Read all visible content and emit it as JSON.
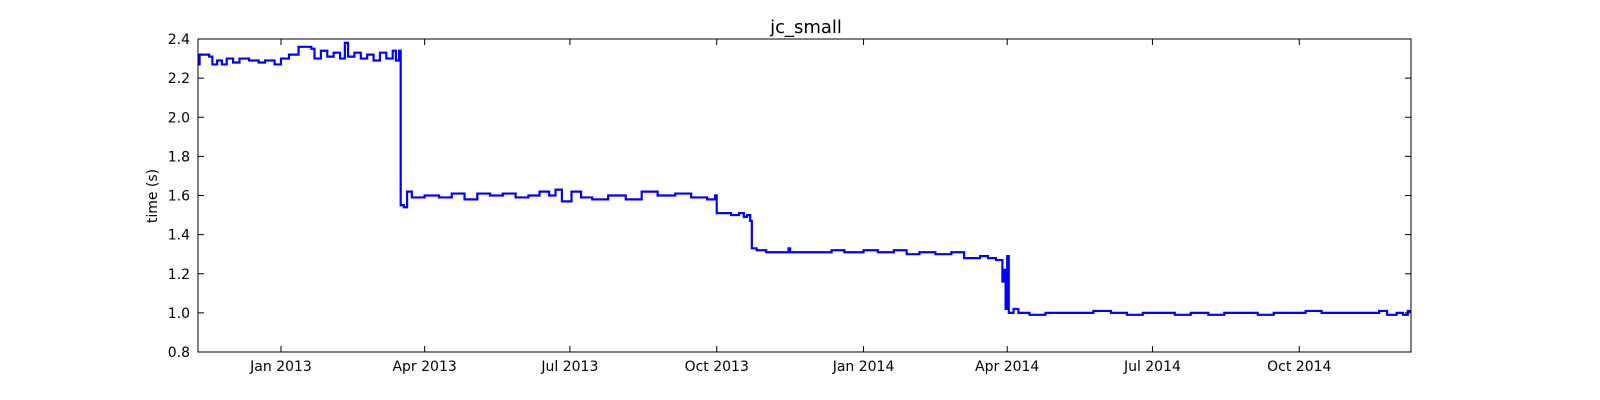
{
  "chart_data": {
    "type": "line",
    "title": "jc_small",
    "xlabel": "",
    "ylabel": "time (s)",
    "x_axis": "date",
    "xlim": [
      "2012-11-10",
      "2014-12-10"
    ],
    "ylim": [
      0.8,
      2.4
    ],
    "x_ticks": [
      {
        "date": "2013-01-01",
        "label": "Jan 2013"
      },
      {
        "date": "2013-04-01",
        "label": "Apr 2013"
      },
      {
        "date": "2013-07-01",
        "label": "Jul 2013"
      },
      {
        "date": "2013-10-01",
        "label": "Oct 2013"
      },
      {
        "date": "2014-01-01",
        "label": "Jan 2014"
      },
      {
        "date": "2014-04-01",
        "label": "Apr 2014"
      },
      {
        "date": "2014-07-01",
        "label": "Jul 2014"
      },
      {
        "date": "2014-10-01",
        "label": "Oct 2014"
      }
    ],
    "y_ticks": [
      {
        "value": 0.8,
        "label": "0.8"
      },
      {
        "value": 1.0,
        "label": "1.0"
      },
      {
        "value": 1.2,
        "label": "1.2"
      },
      {
        "value": 1.4,
        "label": "1.4"
      },
      {
        "value": 1.6,
        "label": "1.6"
      },
      {
        "value": 1.8,
        "label": "1.8"
      },
      {
        "value": 2.0,
        "label": "2.0"
      },
      {
        "value": 2.2,
        "label": "2.2"
      },
      {
        "value": 2.4,
        "label": "2.4"
      }
    ],
    "grid": false,
    "legend": "none",
    "series": [
      {
        "color": "#0000ff",
        "step": true,
        "points": [
          [
            "2012-11-10",
            2.27
          ],
          [
            "2012-11-11",
            2.32
          ],
          [
            "2012-11-17",
            2.31
          ],
          [
            "2012-11-19",
            2.27
          ],
          [
            "2012-11-22",
            2.29
          ],
          [
            "2012-11-25",
            2.27
          ],
          [
            "2012-11-28",
            2.3
          ],
          [
            "2012-12-02",
            2.28
          ],
          [
            "2012-12-06",
            2.3
          ],
          [
            "2012-12-12",
            2.29
          ],
          [
            "2012-12-18",
            2.28
          ],
          [
            "2012-12-22",
            2.29
          ],
          [
            "2012-12-28",
            2.27
          ],
          [
            "2013-01-01",
            2.3
          ],
          [
            "2013-01-06",
            2.32
          ],
          [
            "2013-01-12",
            2.36
          ],
          [
            "2013-01-20",
            2.35
          ],
          [
            "2013-01-22",
            2.3
          ],
          [
            "2013-01-26",
            2.34
          ],
          [
            "2013-01-30",
            2.31
          ],
          [
            "2013-02-03",
            2.33
          ],
          [
            "2013-02-07",
            2.3
          ],
          [
            "2013-02-10",
            2.38
          ],
          [
            "2013-02-12",
            2.31
          ],
          [
            "2013-02-16",
            2.33
          ],
          [
            "2013-02-20",
            2.3
          ],
          [
            "2013-02-24",
            2.32
          ],
          [
            "2013-02-28",
            2.29
          ],
          [
            "2013-03-04",
            2.33
          ],
          [
            "2013-03-08",
            2.3
          ],
          [
            "2013-03-12",
            2.34
          ],
          [
            "2013-03-14",
            2.29
          ],
          [
            "2013-03-16",
            2.34
          ],
          [
            "2013-03-17",
            1.55
          ],
          [
            "2013-03-19",
            1.54
          ],
          [
            "2013-03-21",
            1.62
          ],
          [
            "2013-03-24",
            1.59
          ],
          [
            "2013-04-01",
            1.6
          ],
          [
            "2013-04-10",
            1.59
          ],
          [
            "2013-04-18",
            1.61
          ],
          [
            "2013-04-26",
            1.58
          ],
          [
            "2013-05-04",
            1.61
          ],
          [
            "2013-05-12",
            1.6
          ],
          [
            "2013-05-20",
            1.61
          ],
          [
            "2013-05-28",
            1.59
          ],
          [
            "2013-06-05",
            1.6
          ],
          [
            "2013-06-12",
            1.62
          ],
          [
            "2013-06-18",
            1.6
          ],
          [
            "2013-06-22",
            1.63
          ],
          [
            "2013-06-26",
            1.57
          ],
          [
            "2013-07-02",
            1.62
          ],
          [
            "2013-07-08",
            1.59
          ],
          [
            "2013-07-15",
            1.58
          ],
          [
            "2013-07-25",
            1.6
          ],
          [
            "2013-08-05",
            1.58
          ],
          [
            "2013-08-15",
            1.62
          ],
          [
            "2013-08-25",
            1.6
          ],
          [
            "2013-09-05",
            1.61
          ],
          [
            "2013-09-15",
            1.59
          ],
          [
            "2013-09-25",
            1.58
          ],
          [
            "2013-09-30",
            1.6
          ],
          [
            "2013-10-01",
            1.51
          ],
          [
            "2013-10-10",
            1.5
          ],
          [
            "2013-10-15",
            1.51
          ],
          [
            "2013-10-18",
            1.49
          ],
          [
            "2013-10-20",
            1.5
          ],
          [
            "2013-10-22",
            1.47
          ],
          [
            "2013-10-23",
            1.33
          ],
          [
            "2013-10-26",
            1.32
          ],
          [
            "2013-11-01",
            1.31
          ],
          [
            "2013-11-10",
            1.31
          ],
          [
            "2013-11-15",
            1.33
          ],
          [
            "2013-11-16",
            1.31
          ],
          [
            "2013-11-25",
            1.31
          ],
          [
            "2013-12-05",
            1.31
          ],
          [
            "2013-12-12",
            1.32
          ],
          [
            "2013-12-20",
            1.31
          ],
          [
            "2014-01-01",
            1.32
          ],
          [
            "2014-01-10",
            1.31
          ],
          [
            "2014-01-20",
            1.32
          ],
          [
            "2014-01-28",
            1.3
          ],
          [
            "2014-02-05",
            1.31
          ],
          [
            "2014-02-15",
            1.3
          ],
          [
            "2014-02-25",
            1.31
          ],
          [
            "2014-03-05",
            1.28
          ],
          [
            "2014-03-15",
            1.29
          ],
          [
            "2014-03-20",
            1.28
          ],
          [
            "2014-03-25",
            1.27
          ],
          [
            "2014-03-29",
            1.16
          ],
          [
            "2014-03-30",
            1.22
          ],
          [
            "2014-03-31",
            1.02
          ],
          [
            "2014-04-01",
            1.29
          ],
          [
            "2014-04-02",
            1.0
          ],
          [
            "2014-04-05",
            1.02
          ],
          [
            "2014-04-08",
            1.0
          ],
          [
            "2014-04-15",
            0.99
          ],
          [
            "2014-04-25",
            1.0
          ],
          [
            "2014-05-05",
            1.0
          ],
          [
            "2014-05-15",
            1.0
          ],
          [
            "2014-05-25",
            1.01
          ],
          [
            "2014-06-05",
            1.0
          ],
          [
            "2014-06-15",
            0.99
          ],
          [
            "2014-06-25",
            1.0
          ],
          [
            "2014-07-05",
            1.0
          ],
          [
            "2014-07-15",
            0.99
          ],
          [
            "2014-07-25",
            1.0
          ],
          [
            "2014-08-05",
            0.99
          ],
          [
            "2014-08-15",
            1.0
          ],
          [
            "2014-08-25",
            1.0
          ],
          [
            "2014-09-05",
            0.99
          ],
          [
            "2014-09-15",
            1.0
          ],
          [
            "2014-09-25",
            1.0
          ],
          [
            "2014-10-05",
            1.01
          ],
          [
            "2014-10-15",
            1.0
          ],
          [
            "2014-10-25",
            1.0
          ],
          [
            "2014-11-05",
            1.0
          ],
          [
            "2014-11-15",
            1.0
          ],
          [
            "2014-11-20",
            1.01
          ],
          [
            "2014-11-25",
            0.99
          ],
          [
            "2014-12-01",
            1.0
          ],
          [
            "2014-12-05",
            0.99
          ],
          [
            "2014-12-08",
            1.01
          ],
          [
            "2014-12-10",
            1.0
          ]
        ]
      }
    ]
  }
}
